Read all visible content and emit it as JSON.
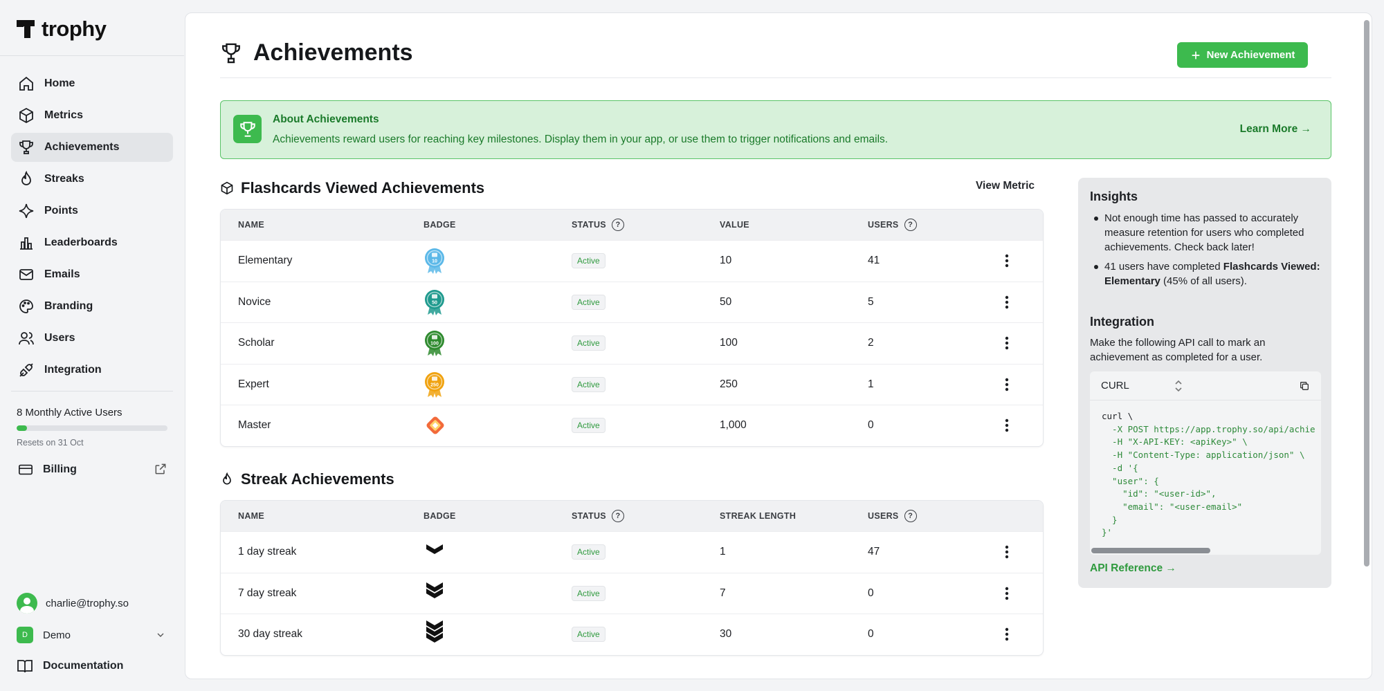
{
  "app": {
    "name": "trophy"
  },
  "sidebar": {
    "items": [
      {
        "label": "Home",
        "icon": "home-icon"
      },
      {
        "label": "Metrics",
        "icon": "cube-icon"
      },
      {
        "label": "Achievements",
        "icon": "trophy-icon",
        "active": true
      },
      {
        "label": "Streaks",
        "icon": "flame-icon"
      },
      {
        "label": "Points",
        "icon": "sparkle-icon"
      },
      {
        "label": "Leaderboards",
        "icon": "bar-chart-icon"
      },
      {
        "label": "Emails",
        "icon": "mail-icon"
      },
      {
        "label": "Branding",
        "icon": "palette-icon"
      },
      {
        "label": "Users",
        "icon": "users-icon"
      },
      {
        "label": "Integration",
        "icon": "plug-icon"
      }
    ],
    "usage": {
      "title": "8 Monthly Active Users",
      "progress": 0.07,
      "reset": "Resets on 31 Oct"
    },
    "billing": "Billing",
    "user_email": "charlie@trophy.so",
    "org": {
      "badge": "D",
      "name": "Demo"
    },
    "docs": "Documentation"
  },
  "page": {
    "title": "Achievements",
    "new_button": "New Achievement"
  },
  "banner": {
    "title": "About Achievements",
    "text": "Achievements reward users for reaching key milestones. Display them in your app, or use them to trigger notifications and emails.",
    "link": "Learn More →"
  },
  "flashcards": {
    "title": "Flashcards Viewed Achievements",
    "view_metric": "View Metric",
    "headers": {
      "name": "NAME",
      "badge": "BADGE",
      "status": "STATUS",
      "value": "VALUE",
      "users": "USERS"
    },
    "rows": [
      {
        "name": "Elementary",
        "status": "Active",
        "value": "10",
        "users": "41",
        "badge_color": "#5bb8e8",
        "badge_text": "10"
      },
      {
        "name": "Novice",
        "status": "Active",
        "value": "50",
        "users": "5",
        "badge_color": "#1f9a8e",
        "badge_text": "50"
      },
      {
        "name": "Scholar",
        "status": "Active",
        "value": "100",
        "users": "2",
        "badge_color": "#2e8a2e",
        "badge_text": "100"
      },
      {
        "name": "Expert",
        "status": "Active",
        "value": "250",
        "users": "1",
        "badge_color": "#f0a20f",
        "badge_text": "250"
      },
      {
        "name": "Master",
        "status": "Active",
        "value": "1,000",
        "users": "0",
        "badge_color": "#f26a3a",
        "badge_text": ""
      }
    ]
  },
  "streaks": {
    "title": "Streak Achievements",
    "headers": {
      "name": "NAME",
      "badge": "BADGE",
      "status": "STATUS",
      "value": "STREAK LENGTH",
      "users": "USERS"
    },
    "rows": [
      {
        "name": "1 day streak",
        "status": "Active",
        "value": "1",
        "users": "47",
        "chevrons": 1
      },
      {
        "name": "7 day streak",
        "status": "Active",
        "value": "7",
        "users": "0",
        "chevrons": 2
      },
      {
        "name": "30 day streak",
        "status": "Active",
        "value": "30",
        "users": "0",
        "chevrons": 3
      }
    ]
  },
  "insights": {
    "title": "Insights",
    "bullet1": "Not enough time has passed to accurately measure retention for users who completed achievements. Check back later!",
    "bullet2_prefix": "41 users have completed ",
    "bullet2_bold": "Flashcards Viewed: Elementary",
    "bullet2_suffix": " (45% of all users).",
    "integration_title": "Integration",
    "integration_text": "Make the following API call to mark an achievement as completed for a user.",
    "code_lang": "CURL",
    "code_lines": [
      "curl \\",
      "  -X POST https://app.trophy.so/api/achie",
      "  -H \"X-API-KEY: <apiKey>\" \\",
      "  -H \"Content-Type: application/json\" \\",
      "  -d '{",
      "  \"user\": {",
      "    \"id\": \"<user-id>\",",
      "    \"email\": \"<user-email>\"",
      "  }",
      "}'"
    ],
    "api_ref": "API Reference →"
  },
  "colors": {
    "accent": "#3dba4e",
    "banner_bg": "#d7f1da",
    "banner_text": "#1a7a2a"
  }
}
